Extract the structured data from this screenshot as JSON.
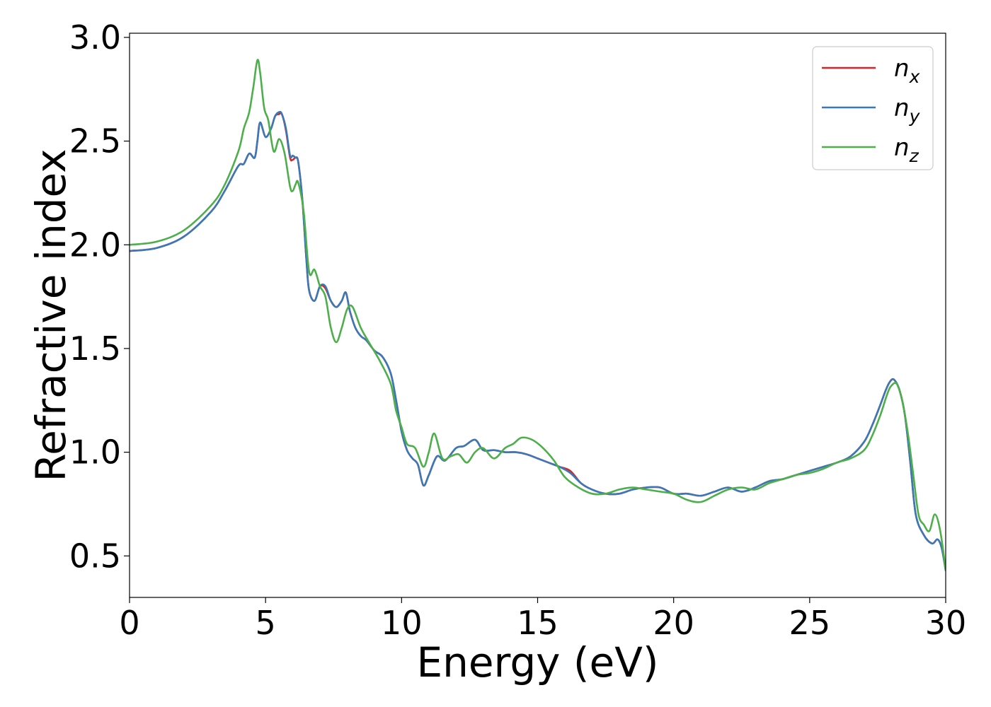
{
  "chart_data": {
    "type": "line",
    "xlabel": "Energy (eV)",
    "ylabel": "Refractive index",
    "xlim": [
      0,
      30
    ],
    "ylim": [
      0.3,
      3.02
    ],
    "xticks": [
      0,
      5,
      10,
      15,
      20,
      25,
      30
    ],
    "xtick_labels": [
      "0",
      "5",
      "10",
      "15",
      "20",
      "25",
      "30"
    ],
    "yticks": [
      0.5,
      1.0,
      1.5,
      2.0,
      2.5,
      3.0
    ],
    "ytick_labels": [
      "0.5",
      "1.0",
      "1.5",
      "2.0",
      "2.5",
      "3.0"
    ],
    "grid": false,
    "legend_position": "top-right",
    "series": [
      {
        "name": "n_x",
        "legend_base": "n",
        "legend_sub": "x",
        "color": "#d62728",
        "x": [
          0,
          1,
          2,
          3,
          3.5,
          4,
          4.2,
          4.4,
          4.6,
          4.7,
          4.8,
          5.0,
          5.2,
          5.35,
          5.5,
          5.6,
          5.75,
          5.9,
          6.0,
          6.1,
          6.2,
          6.35,
          6.5,
          6.6,
          6.8,
          7.0,
          7.2,
          7.4,
          7.6,
          7.8,
          7.95,
          8.1,
          8.3,
          8.5,
          8.7,
          9.0,
          9.3,
          9.6,
          9.8,
          10.0,
          10.2,
          10.4,
          10.6,
          10.8,
          11.0,
          11.3,
          11.6,
          12.0,
          12.3,
          12.7,
          13.0,
          13.4,
          13.8,
          14.2,
          14.6,
          15.0,
          15.4,
          15.8,
          16.2,
          16.6,
          17.0,
          17.5,
          18.0,
          18.5,
          19.0,
          19.5,
          20.0,
          20.5,
          21.0,
          21.5,
          22.0,
          22.5,
          23.0,
          23.5,
          24.0,
          24.5,
          25.0,
          25.5,
          26.0,
          26.5,
          27.0,
          27.3,
          27.6,
          27.8,
          27.95,
          28.1,
          28.3,
          28.5,
          28.7,
          28.9,
          29.2,
          29.5,
          29.7,
          29.85,
          30.0
        ],
        "values": [
          1.97,
          1.985,
          2.04,
          2.16,
          2.26,
          2.38,
          2.39,
          2.44,
          2.42,
          2.5,
          2.59,
          2.52,
          2.56,
          2.62,
          2.63,
          2.63,
          2.55,
          2.42,
          2.41,
          2.42,
          2.4,
          2.22,
          1.93,
          1.78,
          1.73,
          1.8,
          1.79,
          1.73,
          1.7,
          1.73,
          1.77,
          1.68,
          1.6,
          1.56,
          1.54,
          1.49,
          1.46,
          1.38,
          1.25,
          1.1,
          1.01,
          0.97,
          0.94,
          0.84,
          0.89,
          0.98,
          0.96,
          1.02,
          1.03,
          1.06,
          1.01,
          1.01,
          1.0,
          1.0,
          0.99,
          0.97,
          0.95,
          0.93,
          0.91,
          0.85,
          0.82,
          0.8,
          0.8,
          0.82,
          0.83,
          0.83,
          0.8,
          0.8,
          0.79,
          0.81,
          0.83,
          0.81,
          0.83,
          0.86,
          0.87,
          0.89,
          0.91,
          0.93,
          0.95,
          0.98,
          1.05,
          1.13,
          1.23,
          1.3,
          1.34,
          1.35,
          1.3,
          1.18,
          0.95,
          0.7,
          0.6,
          0.56,
          0.58,
          0.54,
          0.43
        ]
      },
      {
        "name": "n_y",
        "legend_base": "n",
        "legend_sub": "y",
        "color": "#3a78b8",
        "x": [
          0,
          1,
          2,
          3,
          3.5,
          4,
          4.2,
          4.4,
          4.6,
          4.7,
          4.8,
          5.0,
          5.2,
          5.35,
          5.5,
          5.6,
          5.75,
          5.9,
          6.0,
          6.1,
          6.2,
          6.35,
          6.5,
          6.6,
          6.8,
          7.0,
          7.2,
          7.4,
          7.6,
          7.8,
          7.95,
          8.1,
          8.3,
          8.5,
          8.7,
          9.0,
          9.3,
          9.6,
          9.8,
          10.0,
          10.2,
          10.4,
          10.6,
          10.8,
          11.0,
          11.3,
          11.6,
          12.0,
          12.3,
          12.7,
          13.0,
          13.4,
          13.8,
          14.2,
          14.6,
          15.0,
          15.4,
          15.8,
          16.2,
          16.6,
          17.0,
          17.5,
          18.0,
          18.5,
          19.0,
          19.5,
          20.0,
          20.5,
          21.0,
          21.5,
          22.0,
          22.5,
          23.0,
          23.5,
          24.0,
          24.5,
          25.0,
          25.5,
          26.0,
          26.5,
          27.0,
          27.3,
          27.6,
          27.8,
          27.95,
          28.1,
          28.3,
          28.5,
          28.7,
          28.9,
          29.2,
          29.5,
          29.7,
          29.85,
          30.0
        ],
        "values": [
          1.97,
          1.985,
          2.04,
          2.16,
          2.26,
          2.38,
          2.39,
          2.44,
          2.42,
          2.5,
          2.59,
          2.52,
          2.56,
          2.62,
          2.64,
          2.63,
          2.56,
          2.43,
          2.43,
          2.42,
          2.4,
          2.22,
          1.93,
          1.78,
          1.73,
          1.8,
          1.8,
          1.73,
          1.7,
          1.73,
          1.77,
          1.68,
          1.6,
          1.56,
          1.54,
          1.49,
          1.46,
          1.38,
          1.25,
          1.1,
          1.01,
          0.97,
          0.94,
          0.84,
          0.89,
          0.98,
          0.96,
          1.02,
          1.03,
          1.06,
          1.01,
          1.01,
          1.0,
          1.0,
          0.99,
          0.97,
          0.95,
          0.93,
          0.9,
          0.85,
          0.82,
          0.8,
          0.8,
          0.82,
          0.83,
          0.83,
          0.8,
          0.8,
          0.79,
          0.81,
          0.83,
          0.81,
          0.83,
          0.86,
          0.87,
          0.89,
          0.91,
          0.93,
          0.95,
          0.98,
          1.05,
          1.13,
          1.23,
          1.3,
          1.34,
          1.35,
          1.3,
          1.18,
          0.95,
          0.7,
          0.6,
          0.56,
          0.58,
          0.54,
          0.43
        ]
      },
      {
        "name": "n_z",
        "legend_base": "n",
        "legend_sub": "z",
        "color": "#4daf4a",
        "x": [
          0,
          1,
          2,
          3,
          3.5,
          4,
          4.2,
          4.4,
          4.55,
          4.7,
          4.8,
          4.95,
          5.1,
          5.3,
          5.5,
          5.7,
          5.9,
          6.0,
          6.1,
          6.2,
          6.4,
          6.6,
          6.8,
          7.0,
          7.2,
          7.4,
          7.6,
          7.8,
          8.0,
          8.2,
          8.5,
          8.8,
          9.2,
          9.6,
          9.8,
          10.0,
          10.2,
          10.5,
          10.8,
          11.0,
          11.2,
          11.5,
          11.8,
          12.1,
          12.4,
          12.7,
          13.0,
          13.4,
          13.8,
          14.1,
          14.4,
          14.8,
          15.2,
          15.6,
          16.0,
          16.5,
          17.0,
          17.5,
          18.0,
          18.5,
          19.0,
          19.5,
          20.0,
          20.5,
          21.0,
          21.5,
          22.0,
          22.5,
          23.0,
          23.5,
          24.0,
          24.5,
          25.0,
          25.5,
          26.0,
          26.5,
          27.0,
          27.3,
          27.6,
          27.85,
          28.0,
          28.2,
          28.4,
          28.6,
          28.8,
          29.0,
          29.2,
          29.4,
          29.6,
          29.8,
          30.0
        ],
        "values": [
          2.0,
          2.015,
          2.07,
          2.19,
          2.29,
          2.45,
          2.56,
          2.64,
          2.76,
          2.89,
          2.83,
          2.66,
          2.6,
          2.45,
          2.51,
          2.44,
          2.28,
          2.26,
          2.29,
          2.3,
          2.16,
          1.87,
          1.88,
          1.8,
          1.75,
          1.6,
          1.53,
          1.6,
          1.69,
          1.7,
          1.6,
          1.53,
          1.44,
          1.33,
          1.2,
          1.12,
          1.04,
          1.02,
          0.93,
          1.0,
          1.09,
          0.97,
          0.98,
          0.99,
          0.95,
          1.0,
          1.02,
          0.97,
          1.02,
          1.04,
          1.07,
          1.06,
          1.02,
          0.96,
          0.88,
          0.83,
          0.8,
          0.8,
          0.82,
          0.83,
          0.82,
          0.81,
          0.8,
          0.77,
          0.76,
          0.79,
          0.82,
          0.83,
          0.82,
          0.85,
          0.87,
          0.89,
          0.9,
          0.92,
          0.95,
          0.97,
          1.01,
          1.08,
          1.18,
          1.28,
          1.32,
          1.33,
          1.25,
          1.1,
          0.9,
          0.7,
          0.65,
          0.62,
          0.7,
          0.62,
          0.43
        ]
      }
    ]
  }
}
